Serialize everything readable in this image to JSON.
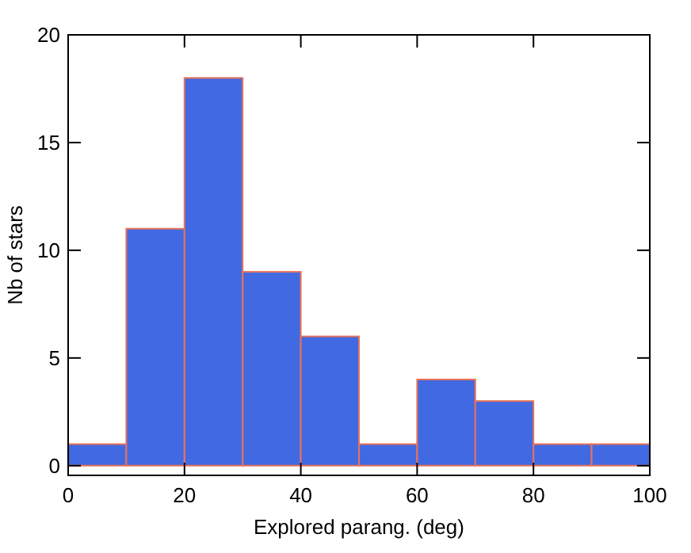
{
  "chart_data": {
    "type": "histogram",
    "xlabel": "Explored parang. (deg)",
    "ylabel": "Nb of stars",
    "bins": [
      0,
      10,
      20,
      30,
      40,
      50,
      60,
      70,
      80,
      90,
      100
    ],
    "values": [
      1,
      11,
      18,
      9,
      6,
      1,
      4,
      3,
      1,
      1
    ],
    "color": "#4169e1",
    "xlim": [
      0,
      100
    ],
    "xticks": [
      0,
      20,
      40,
      60,
      80,
      100
    ],
    "ylim": [
      -0.45,
      20
    ],
    "yticks": [
      0,
      5,
      10,
      15,
      20
    ],
    "grid": false
  }
}
